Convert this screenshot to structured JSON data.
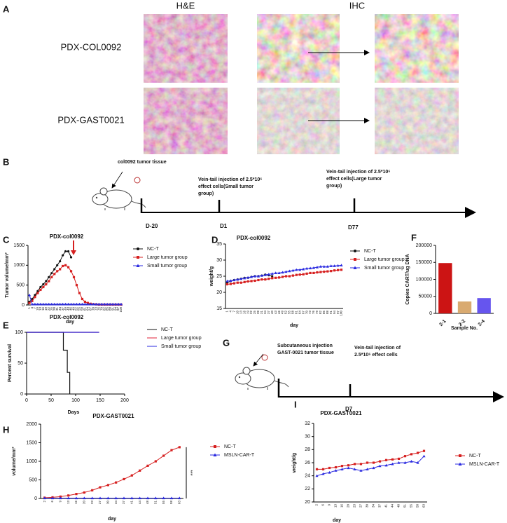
{
  "panels": [
    "A",
    "B",
    "C",
    "D",
    "E",
    "F",
    "G",
    "H",
    "I"
  ],
  "histology": {
    "columns": [
      "H&E",
      "IHC"
    ],
    "rows": [
      "PDX-COL0092",
      "PDX-GAST0021"
    ]
  },
  "timeline_b": {
    "tissue": "col0092 tumor tissue",
    "small": [
      "Vein-tail injection of 2.5*10⁶",
      "effect cells(Small tumor",
      "group)"
    ],
    "large": [
      "Vein-tail injection of 2.5*10⁶",
      "effect cells(Large tumor",
      "group)"
    ],
    "days": [
      "D-20",
      "D1",
      "D77"
    ]
  },
  "timeline_g": {
    "tissue": [
      "Subcutaneous injection",
      "GAST-0021 tumor tissue"
    ],
    "injection": [
      "Vein-tail injection of",
      "2.5*10⁶ effect cells"
    ],
    "days": [
      "D7"
    ]
  },
  "chart_data": [
    {
      "type": "line",
      "title": "PDX-col0092",
      "y_label": "Tumor volume/mm³",
      "x_label": "day",
      "categories": [
        "1",
        "4",
        "7",
        "10",
        "13",
        "16",
        "19",
        "22",
        "25",
        "28",
        "31",
        "34",
        "37",
        "40",
        "43",
        "46",
        "49",
        "52",
        "55",
        "58",
        "61",
        "64",
        "67",
        "70",
        "73",
        "76",
        "79",
        "82",
        "85",
        "88",
        "91",
        "94",
        "97",
        "100"
      ],
      "ylim": [
        0,
        1500
      ],
      "yticks": [
        0,
        500,
        1000,
        1500
      ],
      "series": [
        {
          "name": "NC-T",
          "color": "#111111",
          "marker": "circle",
          "values": [
            80,
            150,
            250,
            350,
            450,
            520,
            600,
            700,
            800,
            900,
            1000,
            1100,
            1250,
            1350,
            1350,
            1200,
            null,
            null,
            null,
            null,
            null,
            null,
            null,
            null,
            null,
            null,
            null,
            null,
            null,
            null,
            null,
            null,
            null,
            null
          ]
        },
        {
          "name": "Large tumor group",
          "color": "#d62020",
          "marker": "square",
          "values": [
            50,
            100,
            200,
            300,
            380,
            450,
            520,
            600,
            700,
            780,
            850,
            900,
            980,
            1000,
            950,
            850,
            700,
            500,
            300,
            150,
            80,
            50,
            30,
            20,
            15,
            10,
            10,
            10,
            10,
            10,
            10,
            10,
            10,
            10
          ]
        },
        {
          "name": "Small tumor group",
          "color": "#2a2ae0",
          "marker": "triangle",
          "values": [
            250,
            20,
            20,
            20,
            20,
            20,
            20,
            20,
            20,
            20,
            20,
            20,
            20,
            20,
            20,
            20,
            20,
            20,
            20,
            20,
            20,
            20,
            20,
            20,
            20,
            20,
            20,
            20,
            20,
            20,
            20,
            20,
            20,
            20
          ]
        }
      ]
    },
    {
      "type": "line",
      "title": "PDX-col0092",
      "y_label": "weight/g",
      "x_label": "day",
      "categories": [
        "1",
        "4",
        "7",
        "10",
        "13",
        "16",
        "19",
        "22",
        "25",
        "28",
        "31",
        "34",
        "37",
        "40",
        "43",
        "46",
        "49",
        "52",
        "55",
        "58",
        "61",
        "64",
        "67",
        "70",
        "73",
        "76",
        "79",
        "82",
        "85",
        "88",
        "91",
        "94",
        "97",
        "100"
      ],
      "ylim": [
        15,
        35
      ],
      "yticks": [
        15,
        20,
        25,
        30,
        35
      ],
      "series": [
        {
          "name": "NC-T",
          "color": "#111111",
          "marker": "circle",
          "values": [
            23,
            23.5,
            23.8,
            24,
            24.2,
            24.5,
            24.5,
            24.8,
            25,
            25,
            25.2,
            25.5,
            25.3,
            25,
            null,
            null,
            null,
            null,
            null,
            null,
            null,
            null,
            null,
            null,
            null,
            null,
            null,
            null,
            null,
            null,
            null,
            null,
            null,
            null
          ]
        },
        {
          "name": "Large tumor group",
          "color": "#d62020",
          "marker": "square",
          "values": [
            22.5,
            22.6,
            22.8,
            23,
            23,
            23.2,
            23.4,
            23.5,
            23.6,
            23.8,
            24,
            24,
            24.2,
            24.4,
            24.5,
            24.6,
            24.8,
            25,
            25,
            25.2,
            25.4,
            25.5,
            25.6,
            25.8,
            26,
            26,
            26.2,
            26.3,
            26.4,
            26.5,
            26.6,
            26.8,
            26.9,
            27
          ]
        },
        {
          "name": "Small tumor group",
          "color": "#2a2ae0",
          "marker": "triangle",
          "values": [
            23.5,
            23.6,
            23.8,
            24,
            24.2,
            24.4,
            24.6,
            24.8,
            25,
            25,
            25.2,
            25.4,
            25.6,
            25.8,
            26,
            26,
            26.2,
            26.4,
            26.6,
            26.8,
            27,
            27,
            27.2,
            27.4,
            27.5,
            27.6,
            27.8,
            28,
            28,
            28,
            28.2,
            28.2,
            28.3,
            28.4
          ]
        }
      ]
    },
    {
      "type": "bar",
      "y_label": "Copies CART/ug DNA",
      "x_label": "Sample No.",
      "categories": [
        "2-1",
        "2-2",
        "2-4"
      ],
      "values": [
        148000,
        35000,
        45000
      ],
      "colors": [
        "#cc1414",
        "#d9aa70",
        "#6655ee"
      ],
      "ylim": [
        0,
        200000
      ],
      "yticks": [
        0,
        50000,
        100000,
        150000,
        200000
      ]
    },
    {
      "type": "step",
      "title": "PDX-col0092",
      "y_label": "Percent survival",
      "x_label": "Days",
      "xlim": [
        0,
        200
      ],
      "xticks": [
        0,
        50,
        100,
        150,
        200
      ],
      "ylim": [
        0,
        100
      ],
      "yticks": [
        0,
        50,
        100
      ],
      "series": [
        {
          "name": "NC-T",
          "color": "#111111",
          "x": [
            0,
            75,
            83,
            88
          ],
          "values": [
            100,
            71,
            35,
            0
          ]
        },
        {
          "name": "Large tumor group",
          "color": "#e0203a",
          "x": [
            0,
            148
          ],
          "values": [
            100,
            100
          ]
        },
        {
          "name": "Small tumor group",
          "color": "#2a2ae0",
          "x": [
            0,
            148
          ],
          "values": [
            100,
            100
          ]
        }
      ]
    },
    {
      "type": "line",
      "title": "PDX-GAST0021",
      "y_label": "volume/mm³",
      "x_label": "day",
      "categories": [
        "2",
        "6",
        "9",
        "13",
        "16",
        "20",
        "23",
        "27",
        "30",
        "34",
        "37",
        "41",
        "44",
        "48",
        "51",
        "55",
        "58",
        "63"
      ],
      "ylim": [
        0,
        2000
      ],
      "yticks": [
        0,
        500,
        1000,
        1500,
        2000
      ],
      "annotation": "***",
      "series": [
        {
          "name": "NC-T",
          "color": "#d62020",
          "marker": "square",
          "values": [
            20,
            30,
            50,
            80,
            120,
            160,
            220,
            300,
            360,
            430,
            520,
            620,
            750,
            880,
            1000,
            1150,
            1300,
            1380
          ]
        },
        {
          "name": "MSLN-CAR-T",
          "color": "#2a2ae0",
          "marker": "triangle",
          "values": [
            10,
            10,
            10,
            10,
            10,
            10,
            10,
            10,
            10,
            10,
            10,
            10,
            10,
            10,
            10,
            10,
            10,
            10
          ]
        }
      ]
    },
    {
      "type": "line",
      "title": "PDX-GAST0021",
      "y_label": "weight/g",
      "x_label": "day",
      "categories": [
        "2",
        "6",
        "9",
        "13",
        "16",
        "20",
        "23",
        "27",
        "30",
        "34",
        "37",
        "41",
        "44",
        "48",
        "51",
        "55",
        "58",
        "63"
      ],
      "ylim": [
        20,
        32
      ],
      "yticks": [
        20,
        22,
        24,
        26,
        28,
        30,
        32
      ],
      "series": [
        {
          "name": "NC-T",
          "color": "#d62020",
          "marker": "square",
          "values": [
            25,
            25,
            25.2,
            25.3,
            25.5,
            25.6,
            25.8,
            25.8,
            26,
            26,
            26.2,
            26.4,
            26.5,
            26.6,
            27,
            27.3,
            27.5,
            27.8
          ]
        },
        {
          "name": "MSLN-CAR-T",
          "color": "#2a2ae0",
          "marker": "triangle",
          "values": [
            24,
            24.3,
            24.5,
            24.8,
            25,
            25.2,
            25,
            24.8,
            25,
            25.2,
            25.5,
            25.6,
            25.8,
            26,
            26,
            26.2,
            26,
            27
          ]
        }
      ]
    }
  ]
}
